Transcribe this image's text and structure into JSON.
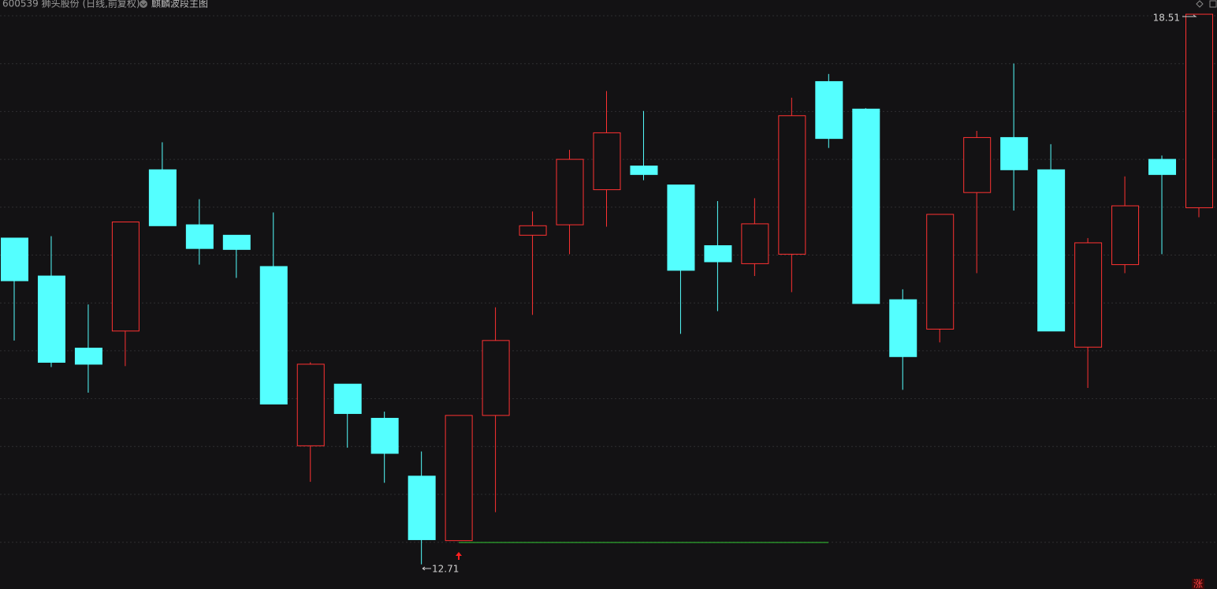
{
  "header": {
    "symbol": "600539 狮头股份 (日线,前复权)",
    "indicator": "麒麟波段主图"
  },
  "chart_data": {
    "type": "candlestick",
    "open": [
      16.15,
      15.75,
      14.99,
      15.17,
      16.87,
      16.29,
      16.18,
      15.85,
      13.96,
      14.61,
      14.25,
      13.64,
      12.96,
      14.28,
      16.18,
      16.29,
      16.66,
      16.91,
      16.71,
      16.07,
      15.88,
      15.98,
      17.8,
      17.51,
      15.5,
      15.19,
      16.63,
      17.21,
      16.87,
      15.0,
      15.87,
      16.98,
      16.47
    ],
    "high": [
      16.15,
      16.17,
      15.45,
      16.32,
      17.16,
      16.56,
      16.18,
      16.42,
      14.84,
      14.61,
      14.32,
      13.9,
      14.28,
      15.42,
      16.43,
      17.08,
      17.7,
      17.49,
      16.71,
      16.54,
      16.57,
      17.63,
      17.88,
      17.52,
      15.61,
      16.4,
      17.28,
      17.99,
      17.14,
      16.15,
      16.8,
      17.02,
      18.51
    ],
    "low": [
      15.07,
      14.79,
      14.52,
      14.8,
      16.28,
      15.87,
      15.73,
      14.4,
      13.58,
      13.94,
      13.57,
      12.71,
      12.96,
      13.26,
      15.34,
      15.98,
      16.27,
      16.76,
      15.14,
      15.38,
      15.75,
      15.58,
      17.1,
      15.46,
      14.55,
      15.05,
      15.78,
      16.44,
      15.17,
      14.57,
      15.78,
      15.98,
      16.37
    ],
    "close": [
      15.7,
      14.84,
      14.82,
      16.32,
      16.28,
      16.04,
      16.03,
      14.4,
      14.82,
      14.3,
      13.88,
      12.97,
      14.28,
      15.07,
      16.28,
      16.98,
      17.26,
      16.82,
      15.81,
      15.9,
      16.3,
      17.44,
      17.2,
      15.46,
      14.9,
      16.4,
      17.21,
      16.87,
      15.17,
      16.1,
      16.49,
      16.82,
      18.51
    ],
    "up_color": "#ff3232",
    "down_color": "#54ffff",
    "ylim": [
      12.45,
      18.66
    ],
    "max_label": 18.51,
    "min_label": 12.71,
    "badge": "涨"
  }
}
